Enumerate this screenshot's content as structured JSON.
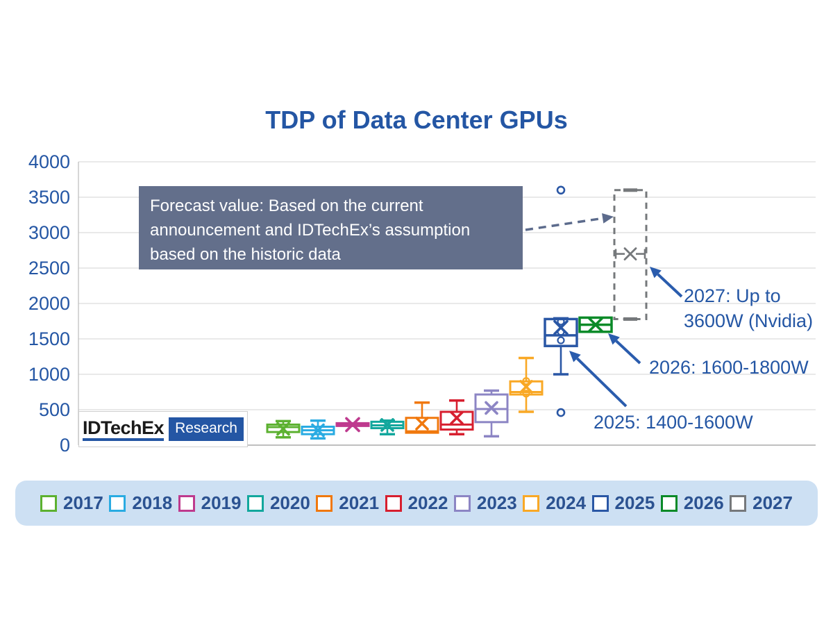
{
  "title": "TDP of Data Center GPUs",
  "logo": {
    "brand": "IDTechEx",
    "research": "Research"
  },
  "annotations": {
    "forecast_note": "Forecast value: Based on the current announcement and IDTechEx’s assumption based on the historic data",
    "y2027_line1": "2027: Up to",
    "y2027_line2": "3600W (Nvidia)",
    "y2026": "2026: 1600-1800W",
    "y2025": "2025: 1400-1600W"
  },
  "ui_colors": {
    "title_blue": "#2456A4",
    "axis_label_blue": "#2456A4",
    "annotation_bg": "#636F8B",
    "legend_bg": "#CDE0F3",
    "legend_text": "#2B5291",
    "arrow_blue": "#2A5CAD",
    "dashed_arrow_gray_blue": "#5C6B8C",
    "gridline": "#DCDCDC",
    "plot_border": "#C4C4C4"
  },
  "chart_data": {
    "type": "boxplot",
    "title": "TDP of Data Center GPUs",
    "xlabel": "",
    "ylabel": "",
    "ylim": [
      0,
      4000
    ],
    "ytick_step": 500,
    "ytick_labels": [
      "0",
      "500",
      "1000",
      "1500",
      "2000",
      "2500",
      "3000",
      "3500",
      "4000"
    ],
    "grid": true,
    "legend_position": "bottom",
    "unit": "W",
    "series": [
      {
        "year": "2017",
        "color": "#5CB130",
        "low": 110,
        "q1": 185,
        "median": 255,
        "mean": 230,
        "q3": 290,
        "high": 340
      },
      {
        "year": "2018",
        "color": "#29ABE2",
        "low": 95,
        "q1": 155,
        "median": 210,
        "mean": 210,
        "q3": 260,
        "high": 345
      },
      {
        "year": "2019",
        "color": "#BE3A8E",
        "low": 275,
        "q1": 275,
        "median": 290,
        "mean": 290,
        "q3": 310,
        "high": 310
      },
      {
        "year": "2020",
        "color": "#12A79D",
        "low": 155,
        "q1": 240,
        "median": 280,
        "mean": 285,
        "q3": 330,
        "high": 345
      },
      {
        "year": "2021",
        "color": "#F0780D",
        "low": 175,
        "q1": 175,
        "median": 195,
        "mean": 305,
        "q3": 385,
        "high": 600
      },
      {
        "year": "2022",
        "color": "#D71F2F",
        "low": 155,
        "q1": 220,
        "median": 290,
        "mean": 385,
        "q3": 470,
        "high": 630
      },
      {
        "year": "2023",
        "color": "#8C85C4",
        "low": 125,
        "q1": 325,
        "median": 510,
        "mean": 525,
        "q3": 715,
        "high": 770
      },
      {
        "year": "2024",
        "color": "#F9A825",
        "low": 470,
        "q1": 715,
        "median": 750,
        "mean": 825,
        "q3": 900,
        "high": 1230,
        "points": [
          905,
          727
        ]
      },
      {
        "year": "2025",
        "color": "#2A57A5",
        "low": 1000,
        "q1": 1400,
        "median": 1550,
        "mean": 1660,
        "q3": 1780,
        "high": 1790,
        "outliers": [
          3600,
          460
        ],
        "points": [
          1745,
          1600,
          1480
        ]
      },
      {
        "year": "2026",
        "color": "#0A8A28",
        "low": 1600,
        "q1": 1600,
        "median": 1700,
        "mean": 1700,
        "q3": 1800,
        "high": 1800
      },
      {
        "year": "2027",
        "color": "#75787B",
        "low": 1780,
        "q1": 1780,
        "median": null,
        "mean": 2700,
        "q3": 3600,
        "high": 3600,
        "dashed": true,
        "forecast": true
      }
    ]
  }
}
